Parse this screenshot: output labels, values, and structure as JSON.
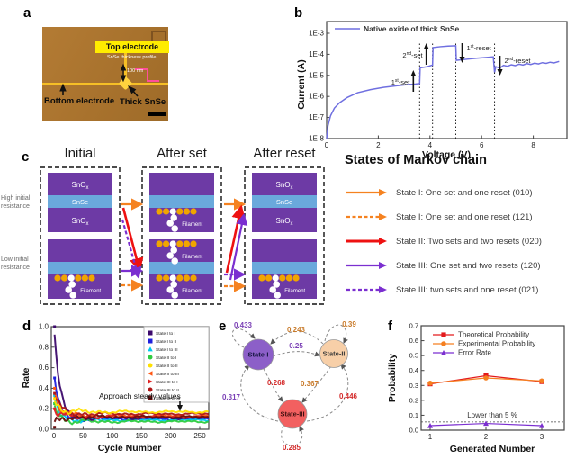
{
  "panels": {
    "a": {
      "label": "a",
      "micrograph": {
        "top_electrode": "Top electrode",
        "thickness_profile": "SnSe thickness profile",
        "thickness_value": "100 nm",
        "bottom_electrode": "Bottom electrode",
        "thick_snse": "Thick SnSe"
      }
    },
    "b": {
      "label": "b"
    },
    "c": {
      "label": "c",
      "headers": [
        "Initial",
        "After set",
        "After reset"
      ],
      "row_labels": [
        "High initial resistance",
        "Low initial resistance"
      ],
      "oxide_label": "SnO",
      "oxide_sub": "x",
      "snse_label": "SnSe",
      "filament_label": "Filament",
      "colors": {
        "oxide": "#6d3aa5",
        "snse": "#6aa9dc",
        "dot_yellow": "#f0a500",
        "dot_white": "#ffffff",
        "arrow_orange": "#f58220",
        "arrow_red": "#ee1111",
        "arrow_purple": "#7b2fd0"
      },
      "devices": [
        {
          "col": 0,
          "row": 0,
          "labels": true,
          "fil_top": false,
          "fil_bottom": false
        },
        {
          "col": 0,
          "row": 1,
          "labels": false,
          "fil_top": false,
          "fil_bottom": true
        },
        {
          "col": 1,
          "row": 0,
          "labels": false,
          "fil_top": false,
          "fil_bottom": true
        },
        {
          "col": 1,
          "row": 1,
          "labels": false,
          "fil_top": true,
          "fil_bottom": true
        },
        {
          "col": 2,
          "row": 0,
          "labels": true,
          "fil_top": false,
          "fil_bottom": false
        },
        {
          "col": 2,
          "row": 1,
          "labels": false,
          "fil_top": false,
          "fil_bottom": true
        }
      ],
      "transitions": [
        {
          "color": "orange",
          "dash": false,
          "from": [
            135,
            227
          ],
          "to": [
            157,
            227
          ]
        },
        {
          "color": "red",
          "dash": false,
          "from": [
            137,
            231
          ],
          "to": [
            155,
            300
          ]
        },
        {
          "color": "purple",
          "dash": true,
          "from": [
            136,
            244
          ],
          "to": [
            154,
            308
          ]
        },
        {
          "color": "purple",
          "dash": false,
          "from": [
            135,
            301
          ],
          "to": [
            157,
            301
          ]
        },
        {
          "color": "orange",
          "dash": true,
          "from": [
            135,
            317
          ],
          "to": [
            157,
            317
          ]
        },
        {
          "color": "orange",
          "dash": false,
          "from": [
            249,
            227
          ],
          "to": [
            271,
            227
          ]
        },
        {
          "color": "red",
          "dash": false,
          "from": [
            252,
            303
          ],
          "to": [
            268,
            230
          ]
        },
        {
          "color": "purple",
          "dash": false,
          "from": [
            256,
            311
          ],
          "to": [
            271,
            239
          ]
        },
        {
          "color": "purple",
          "dash": true,
          "from": [
            249,
            305
          ],
          "to": [
            271,
            305
          ]
        },
        {
          "color": "orange",
          "dash": true,
          "from": [
            249,
            318
          ],
          "to": [
            271,
            318
          ]
        }
      ]
    },
    "markov_legend": {
      "title": "States of Markov chain",
      "items": [
        {
          "color": "#f58220",
          "dash": false,
          "text": "State I: One set and one reset (010)"
        },
        {
          "color": "#f58220",
          "dash": true,
          "text": "State I: One set and one reset (121)"
        },
        {
          "color": "#ee1111",
          "dash": false,
          "text": "State II: Two sets and two resets (020)"
        },
        {
          "color": "#7b2fd0",
          "dash": false,
          "text": "State III: One set and two resets (120)"
        },
        {
          "color": "#7b2fd0",
          "dash": true,
          "text": "State III: two sets and one reset (021)"
        }
      ]
    },
    "d": {
      "label": "d"
    },
    "e": {
      "label": "e",
      "nodes": [
        {
          "name": "State-I",
          "color": "#8c5fc8",
          "text_color": "#151540"
        },
        {
          "name": "State-II",
          "color": "#f7cfa8",
          "text_color": "#3a3a3a"
        },
        {
          "name": "State-III",
          "color": "#f26060",
          "text_color": "#401010"
        }
      ],
      "probabilities": [
        {
          "value": "0.433",
          "color": "#7a3fb5"
        },
        {
          "value": "0.243",
          "color": "#c87a2a"
        },
        {
          "value": "0.25",
          "color": "#7a3fb5"
        },
        {
          "value": "0.39",
          "color": "#c87a2a"
        },
        {
          "value": "0.268",
          "color": "#d42a2a"
        },
        {
          "value": "0.367",
          "color": "#c87a2a"
        },
        {
          "value": "0.317",
          "color": "#7a3fb5"
        },
        {
          "value": "0.446",
          "color": "#d42a2a"
        },
        {
          "value": "0.285",
          "color": "#d42a2a"
        }
      ]
    },
    "f": {
      "label": "f"
    }
  },
  "chart_data": [
    {
      "id": "b",
      "type": "line",
      "xlabel": "Voltage (V)",
      "ylabel": "Current (A)",
      "legend": [
        "Native oxide of thick SnSe"
      ],
      "line_color": "#6f6fe0",
      "x_ticks": [
        0,
        2,
        4,
        6,
        8
      ],
      "y_ticks": [
        "1E-3",
        "1E-4",
        "1E-5",
        "1E-6",
        "1E-7",
        "1E-8"
      ],
      "xlim": [
        0,
        9.3
      ],
      "ylog_range": [
        -8,
        -3
      ],
      "event_lines": [
        3.6,
        4.1,
        5.0,
        6.5
      ],
      "annotations": [
        {
          "base": "1",
          "sup": "st",
          "rest": "-set",
          "dir": "up"
        },
        {
          "base": "2",
          "sup": "nd",
          "rest": "-set",
          "dir": "up"
        },
        {
          "base": "1",
          "sup": "st",
          "rest": "-reset",
          "dir": "down"
        },
        {
          "base": "2",
          "sup": "nd",
          "rest": "-reset",
          "dir": "down"
        }
      ],
      "points": [
        [
          0,
          1e-08
        ],
        [
          0.05,
          4e-08
        ],
        [
          0.15,
          1.2e-07
        ],
        [
          0.3,
          2.8e-07
        ],
        [
          0.5,
          5e-07
        ],
        [
          0.8,
          9e-07
        ],
        [
          1.2,
          1.5e-06
        ],
        [
          1.7,
          2.1e-06
        ],
        [
          2.2,
          2.7e-06
        ],
        [
          2.7,
          3.2e-06
        ],
        [
          3.1,
          3.6e-06
        ],
        [
          3.45,
          3.9e-06
        ],
        [
          3.6,
          4.1e-06
        ],
        [
          3.62,
          2.3e-05
        ],
        [
          3.9,
          2.6e-05
        ],
        [
          4.1,
          3.1e-05
        ],
        [
          4.12,
          0.00021
        ],
        [
          4.4,
          0.00023
        ],
        [
          4.7,
          0.000245
        ],
        [
          5.0,
          0.000255
        ],
        [
          5.02,
          5.2e-05
        ],
        [
          5.4,
          5.8e-05
        ],
        [
          5.8,
          6.5e-05
        ],
        [
          6.2,
          7.1e-05
        ],
        [
          6.45,
          7.6e-05
        ],
        [
          6.5,
          1.4e-05
        ],
        [
          6.55,
          2.6e-05
        ],
        [
          6.7,
          2.2e-05
        ],
        [
          6.85,
          3e-05
        ],
        [
          7.0,
          2.7e-05
        ],
        [
          7.15,
          3.2e-05
        ],
        [
          7.3,
          2.9e-05
        ],
        [
          7.45,
          3.4e-05
        ],
        [
          7.6,
          3.1e-05
        ],
        [
          7.75,
          3.6e-05
        ],
        [
          7.9,
          3.3e-05
        ],
        [
          8.05,
          3.8e-05
        ],
        [
          8.2,
          3.5e-05
        ],
        [
          8.35,
          4e-05
        ],
        [
          8.5,
          3.7e-05
        ],
        [
          8.65,
          4.2e-05
        ],
        [
          8.8,
          3.9e-05
        ],
        [
          9.0,
          4.6e-05
        ]
      ]
    },
    {
      "id": "d",
      "type": "line",
      "xlabel": "Cycle Number",
      "ylabel": "Rate",
      "x_ticks": [
        0,
        50,
        100,
        150,
        200,
        250
      ],
      "y_ticks": [
        "0.0",
        "0.2",
        "0.4",
        "0.6",
        "0.8",
        "1.0"
      ],
      "xlim": [
        0,
        268
      ],
      "ylim": [
        0,
        1
      ],
      "annotation": "Approach steady values",
      "series": [
        {
          "name": "State I to I",
          "color": "#3c096c",
          "marker": "square",
          "start": 1.0,
          "steady": 0.11
        },
        {
          "name": "State I to II",
          "color": "#2020dd",
          "marker": "square",
          "start": 0.5,
          "steady": 0.1
        },
        {
          "name": "State I to III",
          "color": "#00c8ee",
          "marker": "triangle",
          "start": 0.33,
          "steady": 0.09
        },
        {
          "name": "State II to I",
          "color": "#2ecc40",
          "marker": "circle",
          "start": 0.25,
          "steady": 0.075
        },
        {
          "name": "State II to II",
          "color": "#ffe000",
          "marker": "circle",
          "start": 0.3,
          "steady": 0.17
        },
        {
          "name": "State II to III",
          "color": "#ff5511",
          "marker": "tri-left",
          "start": 0.4,
          "steady": 0.13
        },
        {
          "name": "State III to I",
          "color": "#e02020",
          "marker": "tri-right",
          "start": 0.2,
          "steady": 0.12
        },
        {
          "name": "State III to II",
          "color": "#b01515",
          "marker": "circle",
          "start": 0.35,
          "steady": 0.15
        },
        {
          "name": "State III to III",
          "color": "#6a0d0d",
          "marker": "square",
          "start": 0.02,
          "steady": 0.12
        }
      ]
    },
    {
      "id": "f",
      "type": "line",
      "xlabel": "Generated Number",
      "ylabel": "Probability",
      "categories": [
        1,
        2,
        3
      ],
      "x_ticks": [
        "1",
        "2",
        "3"
      ],
      "y_ticks": [
        "0.0",
        "0.1",
        "0.2",
        "0.3",
        "0.4",
        "0.5",
        "0.6",
        "0.7"
      ],
      "ylim": [
        0,
        0.7
      ],
      "threshold_line": 0.055,
      "threshold_label": "Lower than 5 %",
      "series": [
        {
          "name": "Theoretical Probability",
          "color": "#e31a1c",
          "marker": "square",
          "values": [
            0.31,
            0.365,
            0.325
          ]
        },
        {
          "name": "Experimental Probability",
          "color": "#f57f20",
          "marker": "circle",
          "values": [
            0.315,
            0.35,
            0.33
          ]
        },
        {
          "name": "Error Rate",
          "color": "#7b2fd0",
          "marker": "triangle",
          "values": [
            0.03,
            0.045,
            0.03
          ]
        }
      ]
    }
  ]
}
